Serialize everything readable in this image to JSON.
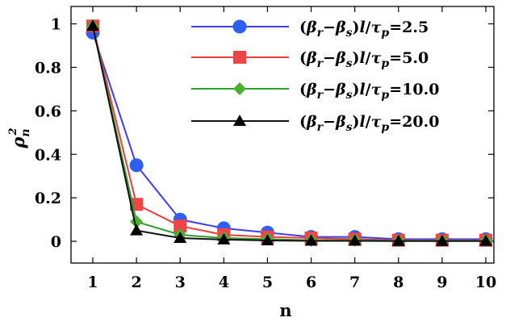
{
  "chart_data": {
    "type": "line",
    "title": "",
    "xlabel": "n",
    "ylabel": "ρn²",
    "ylabel_parts": {
      "base": "ρ",
      "sub": "n",
      "sup": "2"
    },
    "xlim": [
      1,
      10
    ],
    "ylim": [
      -0.1,
      1.08
    ],
    "x_ticks": [
      1,
      2,
      3,
      4,
      5,
      6,
      7,
      8,
      9,
      10
    ],
    "y_ticks": [
      0,
      0.2,
      0.4,
      0.6,
      0.8,
      1
    ],
    "y_tick_labels": [
      "0",
      "0.2",
      "0.4",
      "0.6",
      "0.8",
      "1"
    ],
    "grid": false,
    "legend_position": "top-right",
    "legend_prefix": {
      "open": "(",
      "b1": "β",
      "r": "r",
      "minus": "−",
      "b2": "β",
      "s": "s",
      "close": ")",
      "l": "l",
      "slash": "/",
      "tau": "τ",
      "p": "p"
    },
    "x": [
      1,
      2,
      3,
      4,
      5,
      6,
      7,
      8,
      9,
      10
    ],
    "series": [
      {
        "name": "(βr−βs)l/τp=2.5",
        "value_label": "=2.5",
        "marker": "circle",
        "line_color": "#3d3df2",
        "marker_color": "#2f5ef5",
        "values": [
          0.96,
          0.35,
          0.1,
          0.06,
          0.04,
          0.02,
          0.02,
          0.01,
          0.01,
          0.01
        ]
      },
      {
        "name": "(βr−βs)l/τp=5.0",
        "value_label": "=5.0",
        "marker": "square",
        "line_color": "#ee3b3b",
        "marker_color": "#ee4646",
        "values": [
          0.99,
          0.17,
          0.07,
          0.03,
          0.02,
          0.015,
          0.01,
          0.005,
          0.005,
          0.005
        ]
      },
      {
        "name": "(βr−βs)l/τp=10.0",
        "value_label": "=10.0",
        "marker": "diamond",
        "line_color": "#2ea02e",
        "marker_color": "#4caf32",
        "values": [
          0.99,
          0.09,
          0.03,
          0.015,
          0.01,
          0.005,
          0.005,
          0.003,
          0.003,
          0.003
        ]
      },
      {
        "name": "(βr−βs)l/τp=20.0",
        "value_label": "=20.0",
        "marker": "triangle",
        "line_color": "#111111",
        "marker_color": "#000000",
        "values": [
          0.99,
          0.05,
          0.015,
          0.008,
          0.004,
          0.002,
          0.002,
          0.001,
          0.001,
          0.001
        ]
      }
    ]
  }
}
